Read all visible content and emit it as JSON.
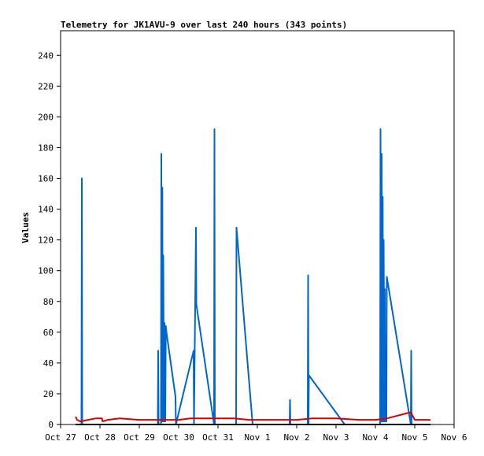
{
  "chart_data": {
    "type": "line",
    "title": "Telemetry for JK1AVU-9 over last 240 hours (343 points)",
    "xlabel": "",
    "ylabel": "Values",
    "x_unit": "days since Oct 27 00:00",
    "xlim": [
      0,
      10
    ],
    "ylim": [
      0,
      256
    ],
    "x_ticks": [
      {
        "label": "Oct 27",
        "value": 0
      },
      {
        "label": "Oct 28",
        "value": 1
      },
      {
        "label": "Oct 29",
        "value": 2
      },
      {
        "label": "Oct 30",
        "value": 3
      },
      {
        "label": "Oct 31",
        "value": 4
      },
      {
        "label": "Nov 1",
        "value": 5
      },
      {
        "label": "Nov 2",
        "value": 6
      },
      {
        "label": "Nov 3",
        "value": 7
      },
      {
        "label": "Nov 4",
        "value": 8
      },
      {
        "label": "Nov 5",
        "value": 9
      },
      {
        "label": "Nov 6",
        "value": 10
      }
    ],
    "y_ticks": [
      0,
      20,
      40,
      60,
      80,
      100,
      120,
      140,
      160,
      180,
      200,
      220,
      240
    ],
    "grid": false,
    "series": [
      {
        "color": "#0066cc",
        "points": [
          [
            0.53,
            0
          ],
          [
            0.54,
            160
          ],
          [
            0.55,
            0
          ],
          [
            2.47,
            0
          ],
          [
            2.48,
            48
          ],
          [
            2.49,
            0
          ],
          [
            2.55,
            0
          ],
          [
            2.56,
            176
          ],
          [
            2.575,
            2
          ],
          [
            2.585,
            154
          ],
          [
            2.595,
            2
          ],
          [
            2.61,
            110
          ],
          [
            2.625,
            2
          ],
          [
            2.64,
            66
          ],
          [
            2.66,
            2
          ],
          [
            2.675,
            64
          ],
          [
            2.69,
            60
          ],
          [
            2.92,
            18
          ],
          [
            2.93,
            0
          ],
          [
            3.38,
            48
          ],
          [
            3.39,
            0
          ],
          [
            3.44,
            128
          ],
          [
            3.45,
            78
          ],
          [
            3.9,
            0
          ],
          [
            3.91,
            192
          ],
          [
            3.92,
            0
          ],
          [
            4.46,
            0
          ],
          [
            4.47,
            128
          ],
          [
            4.88,
            0
          ],
          [
            5.82,
            0
          ],
          [
            5.83,
            16
          ],
          [
            5.84,
            0
          ],
          [
            6.28,
            0
          ],
          [
            6.29,
            97
          ],
          [
            6.3,
            0
          ],
          [
            6.31,
            32
          ],
          [
            7.22,
            0
          ],
          [
            8.12,
            0
          ],
          [
            8.13,
            192
          ],
          [
            8.15,
            2
          ],
          [
            8.16,
            176
          ],
          [
            8.175,
            2
          ],
          [
            8.185,
            148
          ],
          [
            8.2,
            2
          ],
          [
            8.21,
            120
          ],
          [
            8.23,
            2
          ],
          [
            8.24,
            88
          ],
          [
            8.25,
            2
          ],
          [
            8.27,
            48
          ],
          [
            8.28,
            2
          ],
          [
            8.29,
            96
          ],
          [
            8.9,
            0
          ],
          [
            8.91,
            48
          ],
          [
            8.92,
            0
          ]
        ]
      },
      {
        "color": "#dd0000",
        "points": [
          [
            0.38,
            5
          ],
          [
            0.42,
            3
          ],
          [
            0.5,
            2
          ],
          [
            0.7,
            3
          ],
          [
            0.9,
            4
          ],
          [
            1.05,
            4
          ],
          [
            1.07,
            2
          ],
          [
            1.2,
            3
          ],
          [
            1.5,
            4
          ],
          [
            2.0,
            3
          ],
          [
            2.5,
            3
          ],
          [
            3.0,
            3
          ],
          [
            3.3,
            4
          ],
          [
            3.6,
            4
          ],
          [
            4.0,
            4
          ],
          [
            4.4,
            4
          ],
          [
            4.8,
            3
          ],
          [
            5.2,
            3
          ],
          [
            5.6,
            3
          ],
          [
            6.0,
            3
          ],
          [
            6.4,
            4
          ],
          [
            7.0,
            4
          ],
          [
            7.6,
            3
          ],
          [
            8.0,
            3
          ],
          [
            8.3,
            4
          ],
          [
            8.6,
            6
          ],
          [
            8.9,
            8
          ],
          [
            9.0,
            3
          ],
          [
            9.4,
            3
          ]
        ]
      },
      {
        "color": "#000000",
        "points": [
          [
            0.38,
            0
          ],
          [
            9.4,
            0
          ]
        ]
      }
    ]
  }
}
